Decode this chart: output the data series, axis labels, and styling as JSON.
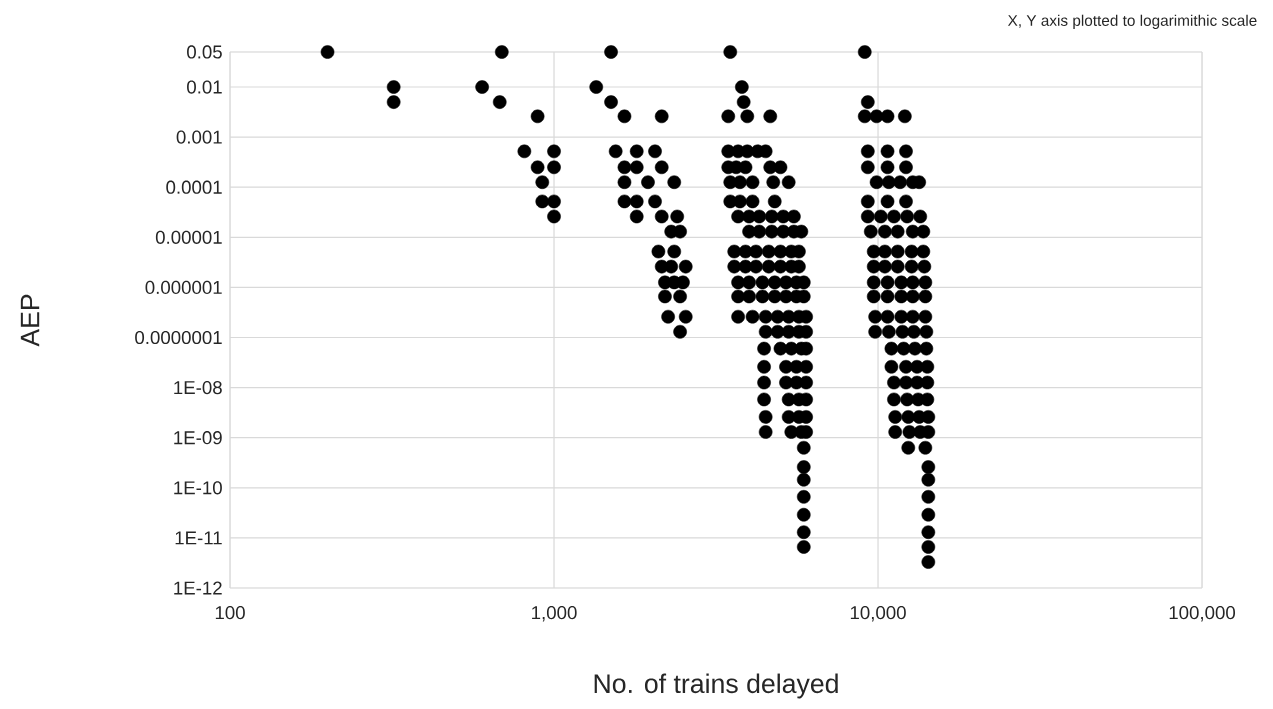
{
  "chart_data": {
    "type": "scatter",
    "xlabel": "No. of trains delayed",
    "ylabel": "AEP",
    "annotations": [
      "X, Y axis plotted to logarimithic scale"
    ],
    "log": "xy",
    "grid": true,
    "xlim": [
      100,
      100000
    ],
    "ylim": [
      1e-12,
      0.05
    ],
    "xticks": [
      {
        "value": 100,
        "label": "100"
      },
      {
        "value": 1000,
        "label": "1,000"
      },
      {
        "value": 10000,
        "label": "10,000"
      },
      {
        "value": 100000,
        "label": "100,000"
      }
    ],
    "yticks": [
      {
        "value": 0.05,
        "label": "0.05"
      },
      {
        "value": 0.01,
        "label": "0.01"
      },
      {
        "value": 0.001,
        "label": "0.001"
      },
      {
        "value": 0.0001,
        "label": "0.0001"
      },
      {
        "value": 1e-05,
        "label": "0.00001"
      },
      {
        "value": 1e-06,
        "label": "0.000001"
      },
      {
        "value": 1e-07,
        "label": "0.0000001"
      },
      {
        "value": 1e-08,
        "label": "1E-08"
      },
      {
        "value": 1e-09,
        "label": "1E-09"
      },
      {
        "value": 1e-10,
        "label": "1E-10"
      },
      {
        "value": 1e-11,
        "label": "1E-11"
      },
      {
        "value": 1e-12,
        "label": "1E-12"
      }
    ],
    "series": [
      {
        "color": "#000000",
        "x": [
          200,
          690,
          1500,
          3500,
          9100,
          320,
          600,
          1350,
          3800,
          320,
          680,
          1500,
          3850,
          9300,
          890,
          1650,
          2150,
          3450,
          3950,
          4650,
          9100,
          9900,
          10700,
          12100,
          810,
          1000,
          1550,
          1800,
          2050,
          3450,
          3700,
          3950,
          4250,
          4500,
          9300,
          10700,
          12200,
          890,
          1000,
          1650,
          1800,
          2150,
          3450,
          3650,
          3900,
          4650,
          5000,
          9300,
          10700,
          12200,
          920,
          1650,
          1950,
          2350,
          3500,
          3750,
          4100,
          4750,
          5300,
          9900,
          10800,
          11700,
          12800,
          13400,
          920,
          1000,
          1650,
          1800,
          2050,
          3500,
          3750,
          4100,
          4800,
          9300,
          10700,
          12200,
          1000,
          1800,
          2150,
          2400,
          3700,
          4000,
          4300,
          4700,
          5100,
          5500,
          9300,
          10200,
          11200,
          12300,
          13500,
          2300,
          2450,
          4000,
          4300,
          4700,
          5100,
          5500,
          5800,
          9500,
          10500,
          11500,
          12800,
          13800,
          2100,
          2350,
          3600,
          3900,
          4200,
          4600,
          5000,
          5400,
          5700,
          9700,
          10500,
          11500,
          12700,
          13800,
          2150,
          2300,
          2550,
          3600,
          3900,
          4200,
          4600,
          5000,
          5400,
          5700,
          9700,
          10500,
          11500,
          12700,
          13900,
          2200,
          2350,
          2500,
          3700,
          4000,
          4400,
          4800,
          5200,
          5600,
          5900,
          9700,
          10700,
          11800,
          12800,
          14000,
          2200,
          2450,
          3700,
          4000,
          4400,
          4800,
          5200,
          5600,
          5900,
          9700,
          10700,
          11800,
          12800,
          14000,
          2250,
          2550,
          3700,
          4100,
          4500,
          4900,
          5300,
          5700,
          6000,
          9800,
          10700,
          11800,
          12800,
          14000,
          2450,
          4500,
          4900,
          5300,
          5700,
          6000,
          9800,
          10800,
          11900,
          12900,
          14100,
          4450,
          5000,
          5400,
          5800,
          6000,
          11000,
          12000,
          13000,
          14100,
          4450,
          5200,
          5600,
          6000,
          11000,
          12200,
          13200,
          14200,
          4450,
          5200,
          5600,
          6000,
          11200,
          12200,
          13200,
          14200,
          4450,
          5300,
          5700,
          6000,
          11200,
          12300,
          13300,
          14200,
          4500,
          5300,
          5700,
          6000,
          11300,
          12400,
          13400,
          14300,
          4500,
          5400,
          5800,
          6000,
          11300,
          12500,
          13500,
          14300,
          5900,
          12400,
          14000,
          5900,
          14300,
          5900,
          14300,
          5900,
          14300,
          5900,
          14300,
          5900,
          14300,
          5900,
          14300,
          14300
        ],
        "values": [
          0.05,
          0.05,
          0.05,
          0.05,
          0.05,
          0.01,
          0.01,
          0.01,
          0.01,
          0.005,
          0.005,
          0.005,
          0.005,
          0.005,
          0.0026,
          0.0026,
          0.0026,
          0.0026,
          0.0026,
          0.0026,
          0.0026,
          0.0026,
          0.0026,
          0.0026,
          0.00052,
          0.00052,
          0.00052,
          0.00052,
          0.00052,
          0.00052,
          0.00052,
          0.00052,
          0.00052,
          0.00052,
          0.00052,
          0.00052,
          0.00052,
          0.00025,
          0.00025,
          0.00025,
          0.00025,
          0.00025,
          0.00025,
          0.00025,
          0.00025,
          0.00025,
          0.00025,
          0.00025,
          0.00025,
          0.00025,
          0.000126,
          0.000126,
          0.000126,
          0.000126,
          0.000126,
          0.000126,
          0.000126,
          0.000126,
          0.000126,
          0.000126,
          0.000126,
          0.000126,
          0.000126,
          0.000126,
          5.2e-05,
          5.2e-05,
          5.2e-05,
          5.2e-05,
          5.2e-05,
          5.2e-05,
          5.2e-05,
          5.2e-05,
          5.2e-05,
          5.2e-05,
          5.2e-05,
          5.2e-05,
          2.6e-05,
          2.6e-05,
          2.6e-05,
          2.6e-05,
          2.6e-05,
          2.6e-05,
          2.6e-05,
          2.6e-05,
          2.6e-05,
          2.6e-05,
          2.6e-05,
          2.6e-05,
          2.6e-05,
          2.6e-05,
          2.6e-05,
          1.3e-05,
          1.3e-05,
          1.3e-05,
          1.3e-05,
          1.3e-05,
          1.3e-05,
          1.3e-05,
          1.3e-05,
          1.3e-05,
          1.3e-05,
          1.3e-05,
          1.3e-05,
          1.3e-05,
          5.2e-06,
          5.2e-06,
          5.2e-06,
          5.2e-06,
          5.2e-06,
          5.2e-06,
          5.2e-06,
          5.2e-06,
          5.2e-06,
          5.2e-06,
          5.2e-06,
          5.2e-06,
          5.2e-06,
          5.2e-06,
          2.6e-06,
          2.6e-06,
          2.6e-06,
          2.6e-06,
          2.6e-06,
          2.6e-06,
          2.6e-06,
          2.6e-06,
          2.6e-06,
          2.6e-06,
          2.6e-06,
          2.6e-06,
          2.6e-06,
          2.6e-06,
          2.6e-06,
          1.26e-06,
          1.26e-06,
          1.26e-06,
          1.26e-06,
          1.26e-06,
          1.26e-06,
          1.26e-06,
          1.26e-06,
          1.26e-06,
          1.26e-06,
          1.26e-06,
          1.26e-06,
          1.26e-06,
          1.26e-06,
          1.26e-06,
          6.6e-07,
          6.6e-07,
          6.6e-07,
          6.6e-07,
          6.6e-07,
          6.6e-07,
          6.6e-07,
          6.6e-07,
          6.6e-07,
          6.6e-07,
          6.6e-07,
          6.6e-07,
          6.6e-07,
          6.6e-07,
          2.6e-07,
          2.6e-07,
          2.6e-07,
          2.6e-07,
          2.6e-07,
          2.6e-07,
          2.6e-07,
          2.6e-07,
          2.6e-07,
          2.6e-07,
          2.6e-07,
          2.6e-07,
          2.6e-07,
          2.6e-07,
          1.3e-07,
          1.3e-07,
          1.3e-07,
          1.3e-07,
          1.3e-07,
          1.3e-07,
          1.3e-07,
          1.3e-07,
          1.3e-07,
          1.3e-07,
          1.3e-07,
          6e-08,
          6e-08,
          6e-08,
          6e-08,
          6e-08,
          6e-08,
          6e-08,
          6e-08,
          6e-08,
          2.6e-08,
          2.6e-08,
          2.6e-08,
          2.6e-08,
          2.6e-08,
          2.6e-08,
          2.6e-08,
          2.6e-08,
          1.26e-08,
          1.26e-08,
          1.26e-08,
          1.26e-08,
          1.26e-08,
          1.26e-08,
          1.26e-08,
          1.26e-08,
          5.8e-09,
          5.8e-09,
          5.8e-09,
          5.8e-09,
          5.8e-09,
          5.8e-09,
          5.8e-09,
          5.8e-09,
          2.6e-09,
          2.6e-09,
          2.6e-09,
          2.6e-09,
          2.6e-09,
          2.6e-09,
          2.6e-09,
          2.6e-09,
          1.3e-09,
          1.3e-09,
          1.3e-09,
          1.3e-09,
          1.3e-09,
          1.3e-09,
          1.3e-09,
          1.3e-09,
          6.3e-10,
          6.3e-10,
          6.3e-10,
          2.6e-10,
          2.6e-10,
          1.45e-10,
          1.45e-10,
          6.6e-11,
          6.6e-11,
          2.9e-11,
          2.9e-11,
          1.3e-11,
          1.3e-11,
          6.6e-12,
          6.6e-12,
          3.3e-12
        ]
      }
    ]
  }
}
